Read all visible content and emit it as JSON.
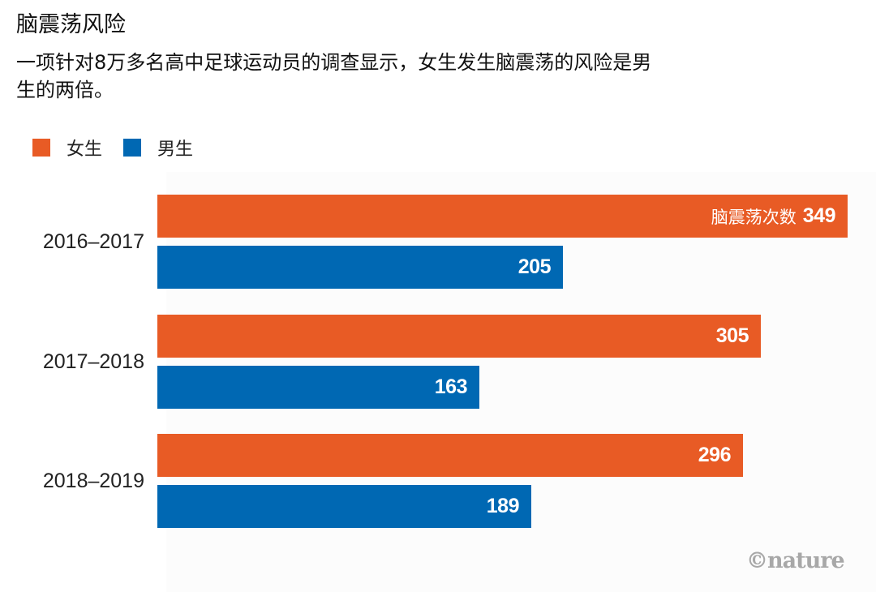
{
  "title": "脑震荡风险",
  "subtitle": "一项针对8万多名高中足球运动员的调查显示，女生发生脑震荡的风险是男生的两倍。",
  "legend": [
    {
      "label": "女生",
      "color": "#e85b25"
    },
    {
      "label": "男生",
      "color": "#0068b3"
    }
  ],
  "bar_prefix": "脑震荡次数",
  "credit": "©nature",
  "colors": {
    "female": "#e85b25",
    "male": "#0068b3"
  },
  "chart_data": {
    "type": "bar",
    "orientation": "horizontal",
    "title": "脑震荡风险",
    "subtitle": "一项针对8万多名高中足球运动员的调查显示，女生发生脑震荡的风险是男生的两倍。",
    "categories": [
      "2016–2017",
      "2017–2018",
      "2018–2019"
    ],
    "series": [
      {
        "name": "女生",
        "color": "#e85b25",
        "values": [
          349,
          305,
          296
        ]
      },
      {
        "name": "男生",
        "color": "#0068b3",
        "values": [
          205,
          163,
          189
        ]
      }
    ],
    "value_label_prefix": "脑震荡次数",
    "xlabel": "",
    "ylabel": "",
    "xlim": [
      0,
      349
    ],
    "grid": false,
    "legend_position": "top-left",
    "source": "©nature"
  },
  "rows": [
    {
      "category": "2016–2017",
      "female": "349",
      "male": "205"
    },
    {
      "category": "2017–2018",
      "female": "305",
      "male": "163"
    },
    {
      "category": "2018–2019",
      "female": "296",
      "male": "189"
    }
  ]
}
